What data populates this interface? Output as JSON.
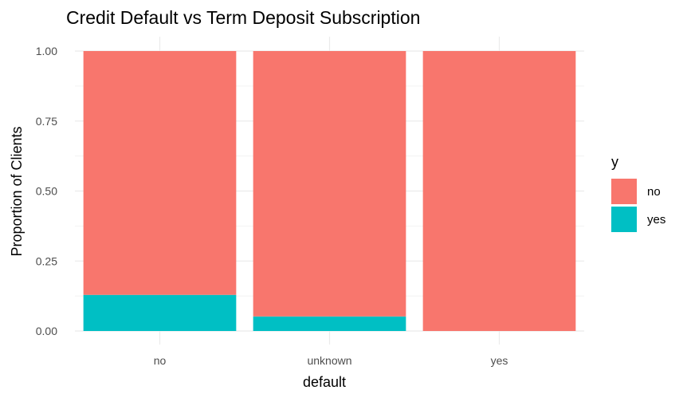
{
  "chart_data": {
    "type": "bar",
    "stacked": true,
    "title": "Credit Default vs Term Deposit Subscription",
    "xlabel": "default",
    "ylabel": "Proportion of Clients",
    "categories": [
      "no",
      "unknown",
      "yes"
    ],
    "series": [
      {
        "name": "no",
        "values": [
          0.871,
          0.948,
          1.0
        ],
        "color": "#F8766D"
      },
      {
        "name": "yes",
        "values": [
          0.129,
          0.052,
          0.0
        ],
        "color": "#00BFC4"
      }
    ],
    "ylim": [
      0,
      1
    ],
    "yticks": [
      "0.00",
      "0.25",
      "0.50",
      "0.75",
      "1.00"
    ],
    "grid": true,
    "legend": {
      "title": "y",
      "position": "right"
    }
  }
}
